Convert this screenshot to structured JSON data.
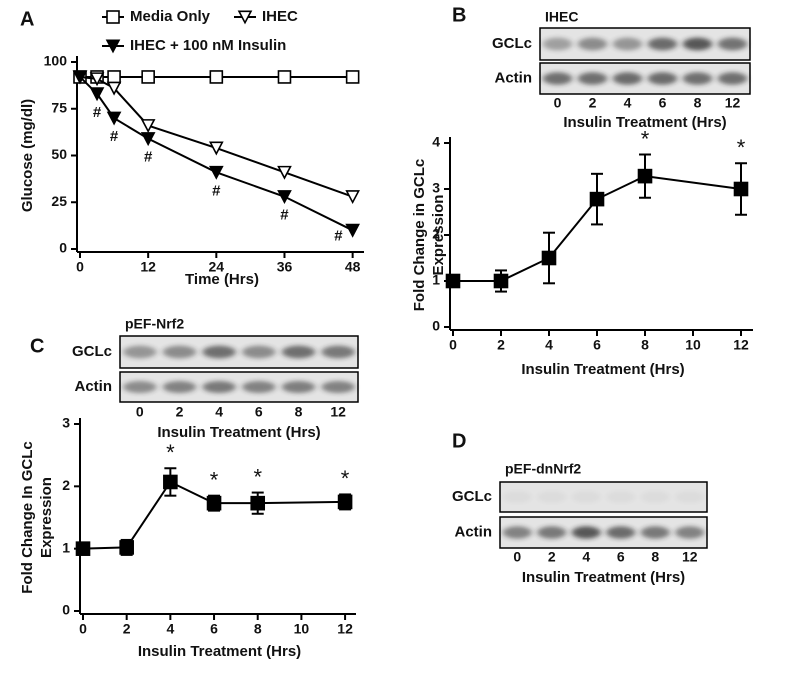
{
  "chart_data": [
    {
      "type": "line",
      "panel_label": "A",
      "xlabel": "Time (Hrs)",
      "ylabel": "Glucose (mg/dl)",
      "xlim": [
        0,
        50
      ],
      "ylim": [
        0,
        100
      ],
      "xticks": [
        0,
        12,
        24,
        36,
        48
      ],
      "yticks": [
        0,
        25,
        50,
        75,
        100
      ],
      "x": [
        0,
        3,
        6,
        12,
        24,
        36,
        48
      ],
      "series": [
        {
          "name": "Media Only",
          "color": "#000000",
          "marker": "square",
          "filled": false,
          "values": [
            92,
            92,
            92,
            92,
            92,
            92,
            92
          ]
        },
        {
          "name": "IHEC",
          "color": "#000000",
          "marker": "triangle-down",
          "filled": false,
          "values": [
            92,
            91,
            86,
            66,
            54,
            41,
            28
          ]
        },
        {
          "name": "IHEC + 100 nM Insulin",
          "color": "#000000",
          "marker": "triangle-down",
          "filled": true,
          "values": [
            92,
            83,
            70,
            59,
            41,
            28,
            10
          ]
        }
      ],
      "annotations": [
        {
          "x": 3,
          "text": "#"
        },
        {
          "x": 6,
          "text": "#"
        },
        {
          "x": 12,
          "text": "#"
        },
        {
          "x": 24,
          "text": "#"
        },
        {
          "x": 36,
          "text": "#"
        },
        {
          "x": 48,
          "text": "#"
        }
      ]
    },
    {
      "type": "line",
      "panel_label": "B",
      "xlabel": "Insulin Treatment (Hrs)",
      "ylabel": [
        "Fold Change in GCLc",
        "Expression"
      ],
      "xlim": [
        0,
        12.5
      ],
      "ylim": [
        0,
        4
      ],
      "xticks": [
        0,
        2,
        4,
        6,
        8,
        10,
        12
      ],
      "yticks": [
        0,
        1,
        2,
        3,
        4
      ],
      "x": [
        0,
        2,
        4,
        6,
        8,
        12
      ],
      "series": [
        {
          "color": "#000000",
          "marker": "square",
          "filled": true,
          "values": [
            1,
            1,
            1.5,
            2.78,
            3.28,
            3.0
          ],
          "errors": [
            0,
            0.23,
            0.55,
            0.55,
            0.47,
            0.56
          ]
        }
      ],
      "annotations": [
        {
          "x": 8,
          "text": "*"
        },
        {
          "x": 12,
          "text": "*"
        }
      ]
    },
    {
      "type": "line",
      "panel_label": "C",
      "xlabel": "Insulin Treatment (Hrs)",
      "ylabel": [
        "Fold Change In GCLc",
        "Expression"
      ],
      "xlim": [
        0,
        12.5
      ],
      "ylim": [
        0,
        3
      ],
      "xticks": [
        0,
        2,
        4,
        6,
        8,
        10,
        12
      ],
      "yticks": [
        0,
        1,
        2,
        3
      ],
      "x": [
        0,
        2,
        4,
        6,
        8,
        12
      ],
      "series": [
        {
          "color": "#000000",
          "marker": "square",
          "filled": true,
          "values": [
            1,
            1.02,
            2.07,
            1.73,
            1.73,
            1.75
          ],
          "errors": [
            0,
            0.12,
            0.22,
            0.12,
            0.17,
            0.12
          ]
        }
      ],
      "annotations": [
        {
          "x": 4,
          "text": "*"
        },
        {
          "x": 6,
          "text": "*"
        },
        {
          "x": 8,
          "text": "*"
        },
        {
          "x": 12,
          "text": "*"
        }
      ]
    }
  ],
  "blots": [
    {
      "label": "IHEC",
      "rows": [
        "GCLc",
        "Actin"
      ],
      "lanes": [
        0,
        2,
        4,
        6,
        8,
        12
      ],
      "xlabel": "Insulin Treatment (Hrs)"
    },
    {
      "label": "pEF-Nrf2",
      "rows": [
        "GCLc",
        "Actin"
      ],
      "lanes": [
        0,
        2,
        4,
        6,
        8,
        12
      ],
      "xlabel": "Insulin Treatment (Hrs)"
    },
    {
      "panel_label": "D",
      "label": "pEF-dnNrf2",
      "rows": [
        "GCLc",
        "Actin"
      ],
      "lanes": [
        0,
        2,
        4,
        6,
        8,
        12
      ],
      "xlabel": "Insulin Treatment (Hrs)"
    }
  ]
}
